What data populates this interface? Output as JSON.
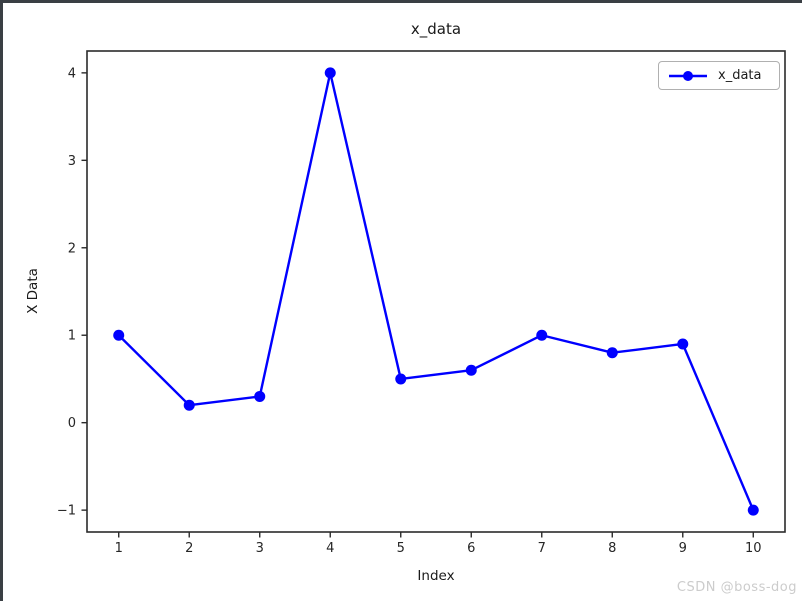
{
  "window": {
    "background": "#ffffff",
    "frame_border_color": "#3a3f44"
  },
  "chart_data": {
    "type": "line",
    "title": "x_data",
    "xlabel": "Index",
    "ylabel": "X Data",
    "x": [
      1,
      2,
      3,
      4,
      5,
      6,
      7,
      8,
      9,
      10
    ],
    "series": [
      {
        "name": "x_data",
        "color": "#0000ff",
        "marker": "circle",
        "line_style": "solid",
        "values": [
          1.0,
          0.2,
          0.3,
          4.0,
          0.5,
          0.6,
          1.0,
          0.8,
          0.9,
          -1.0
        ]
      }
    ],
    "xlim": [
      0.55,
      10.45
    ],
    "ylim": [
      -1.25,
      4.25
    ],
    "xticks": [
      1,
      2,
      3,
      4,
      5,
      6,
      7,
      8,
      9,
      10
    ],
    "yticks": [
      -1,
      0,
      1,
      2,
      3,
      4
    ],
    "grid": false,
    "legend": {
      "position": "upper-right",
      "entries": [
        "x_data"
      ]
    },
    "axis_color": "#2b2b2b",
    "tick_label_color": "#262626"
  },
  "watermark": {
    "text": "CSDN @boss-dog",
    "color": "#cccccc"
  }
}
